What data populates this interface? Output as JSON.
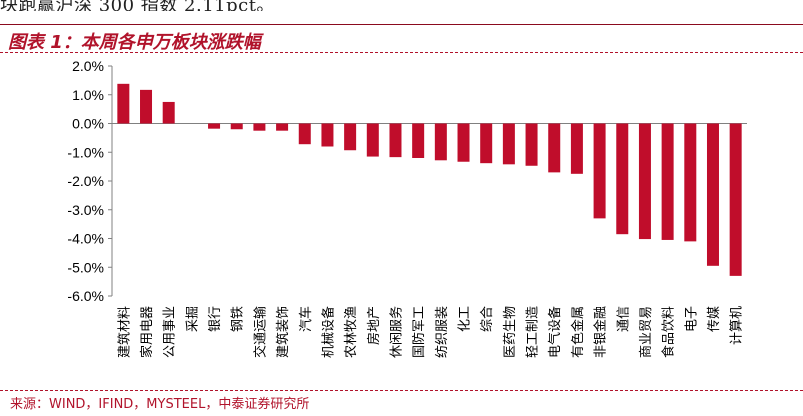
{
  "top_fragment": "块跑赢沪深 300 指数 2.11pct。",
  "figure_title": "图表 1：本周各申万板块涨跌幅",
  "source": "来源：WIND，IFIND，MYSTEEL，中泰证券研究所",
  "colors": {
    "bar": "#c00d2b",
    "title": "#b1132b",
    "axis": "#808080"
  },
  "chart_data": {
    "type": "bar",
    "title": "",
    "xlabel": "",
    "ylabel": "",
    "ylim": [
      -6,
      2
    ],
    "yticks": [
      2,
      1,
      0,
      -1,
      -2,
      -3,
      -4,
      -5,
      -6
    ],
    "ytick_labels": [
      "2.0%",
      "1.0%",
      "0.0%",
      "-1.0%",
      "-2.0%",
      "-3.0%",
      "-4.0%",
      "-5.0%",
      "-6.0%"
    ],
    "grid": false,
    "legend": "none",
    "categories": [
      "建筑材料",
      "家用电器",
      "公用事业",
      "采掘",
      "银行",
      "钢铁",
      "交通运输",
      "建筑装饰",
      "汽车",
      "机械设备",
      "农林牧渔",
      "房地产",
      "休闲服务",
      "国防军工",
      "纺织服装",
      "化工",
      "综合",
      "医药生物",
      "轻工制造",
      "电气设备",
      "有色金属",
      "非银金融",
      "通信",
      "商业贸易",
      "食品饮料",
      "电子",
      "传媒",
      "计算机"
    ],
    "values": [
      1.38,
      1.17,
      0.75,
      0.0,
      -0.18,
      -0.2,
      -0.25,
      -0.25,
      -0.72,
      -0.8,
      -0.93,
      -1.15,
      -1.17,
      -1.2,
      -1.28,
      -1.33,
      -1.38,
      -1.42,
      -1.47,
      -1.7,
      -1.75,
      -3.3,
      -3.85,
      -4.02,
      -4.05,
      -4.1,
      -4.95,
      -5.3
    ]
  }
}
